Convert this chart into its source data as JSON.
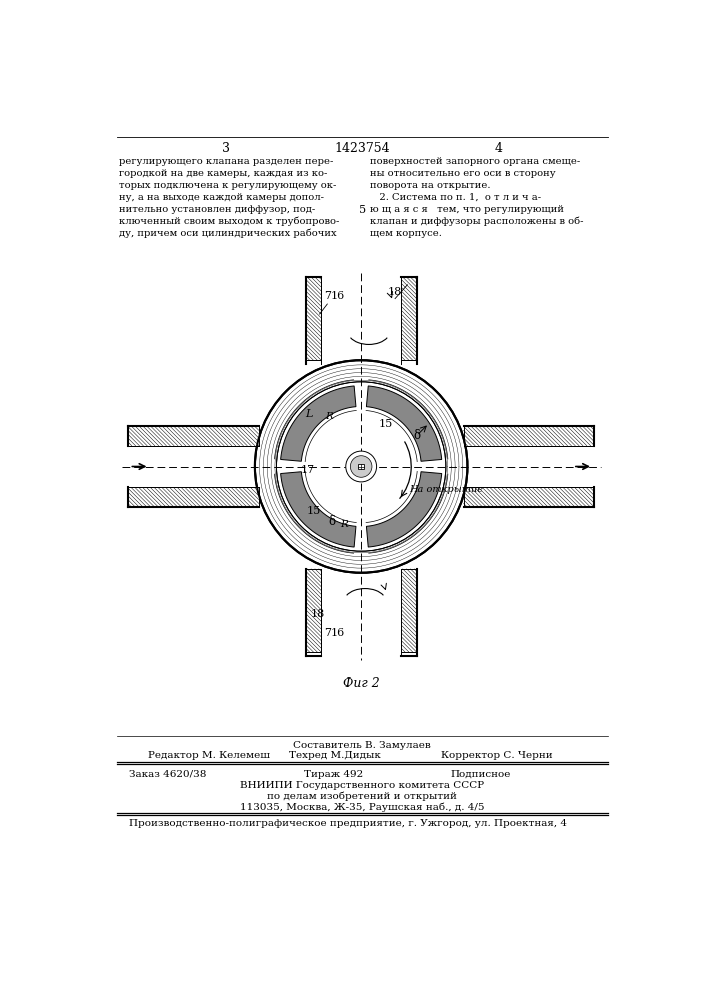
{
  "bg_color": "#ffffff",
  "text_color": "#000000",
  "page_number_left": "3",
  "patent_number": "1423754",
  "page_number_right": "4",
  "left_column_text": [
    "регулирующего клапана разделен пере-",
    "городкой на две камеры, каждая из ко-",
    "торых подключена к регулирующему ок-",
    "ну, а на выходе каждой камеры допол-",
    "нительно установлен диффузор, под-",
    "ключенный своим выходом к трубопрово-",
    "ду, причем оси цилиндрических рабочих"
  ],
  "right_column_text": [
    "поверхностей запорного органа смеще-",
    "ны относительно его оси в сторону",
    "поворота на открытие.",
    "   2. Система по п. 1,  о т л и ч а-",
    "ю щ а я с я   тем, что регулирующий",
    "клапан и диффузоры расположены в об-",
    "щем корпусе."
  ],
  "col_divider_number": "5",
  "fig_caption": "Фиг 2",
  "footer": {
    "line1_center": "Составитель В. Замулаев",
    "line2_left": "Редактор М. Келемеш",
    "line2_center": "Техред М.Дидык",
    "line2_right": "Корректор С. Черни",
    "line3_left": "Заказ 4620/38",
    "line3_center": "Тираж 492",
    "line3_right": "Подписное",
    "line4": "ВНИИПИ Государственного комитета СССР",
    "line5": "по делам изобретений и открытий",
    "line6": "113035, Москва, Ж-35, Раушская наб., д. 4/5",
    "line7": "Производственно-полиграфическое предприятие, г. Ужгород, ул. Проектная, 4"
  }
}
